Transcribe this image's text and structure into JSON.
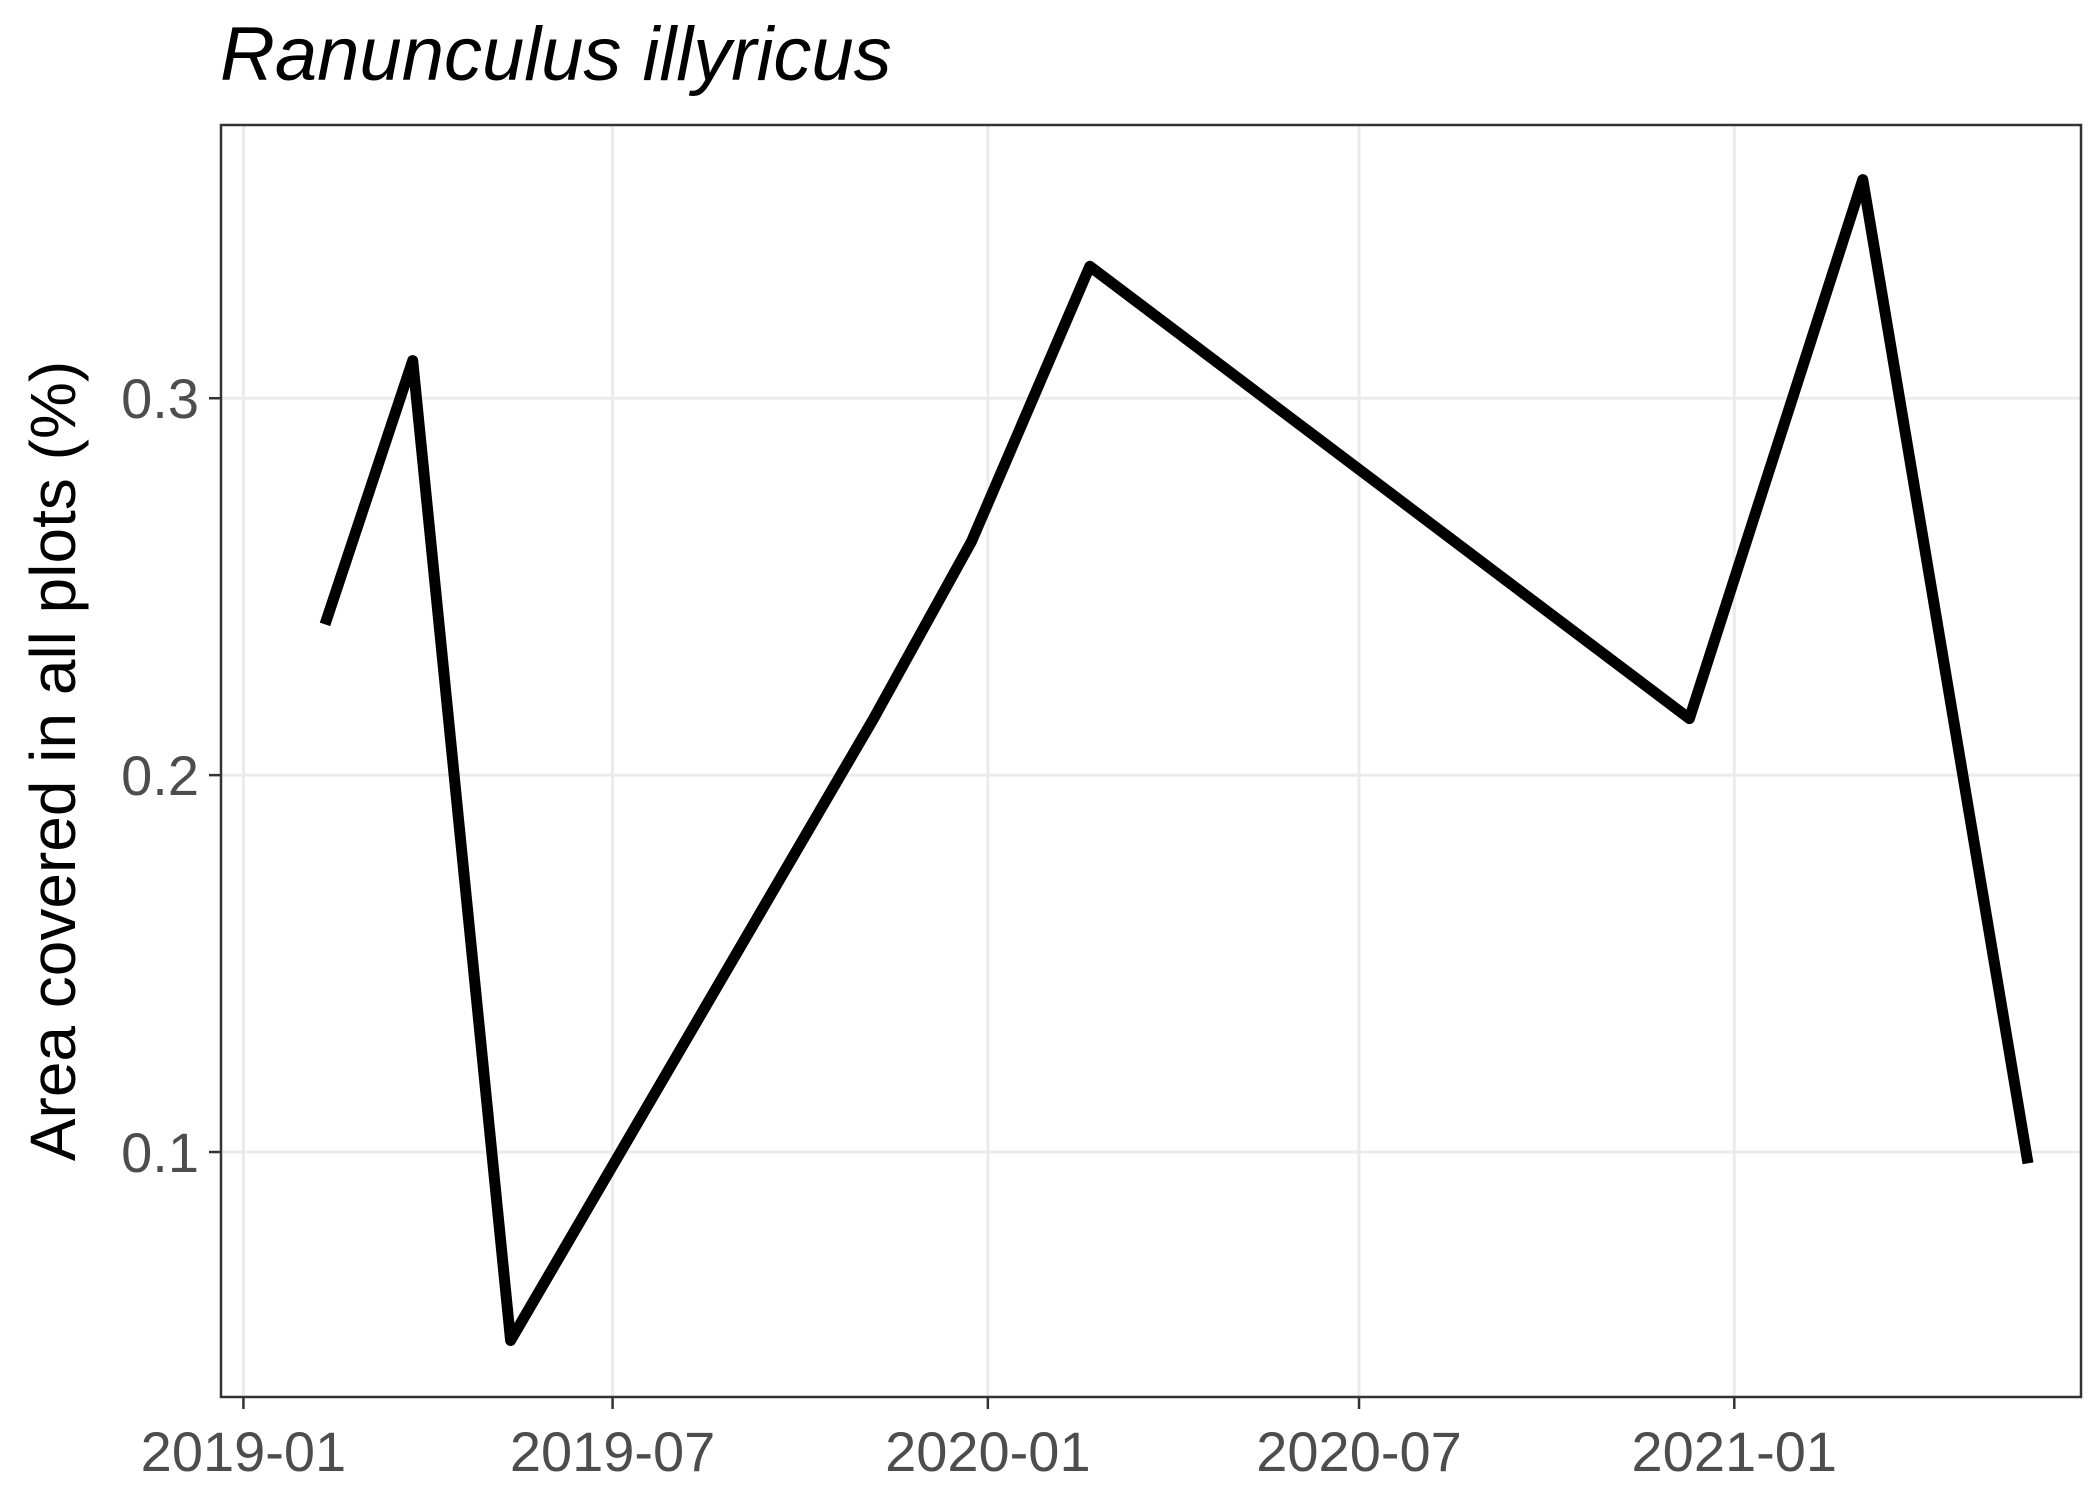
{
  "chart_data": {
    "type": "line",
    "title": "Ranunculus illyricus",
    "xlabel": "",
    "ylabel": "Area covered in all plots (%)",
    "x": [
      "2019-02-10",
      "2019-03-25",
      "2019-05-12",
      "2019-11-06",
      "2019-12-24",
      "2020-02-20",
      "2020-12-10",
      "2021-03-05",
      "2021-05-25"
    ],
    "series": [
      {
        "values": [
          0.24,
          0.31,
          0.05,
          0.215,
          0.262,
          0.335,
          0.215,
          0.358,
          0.097
        ]
      }
    ],
    "xlim": [
      "2018-12-21",
      "2021-06-20"
    ],
    "ylim": [
      0.035,
      0.3725
    ],
    "x_ticks": [
      "2019-01-01",
      "2019-07-01",
      "2020-01-01",
      "2020-07-01",
      "2021-01-01"
    ],
    "x_tick_labels": [
      "2019-01",
      "2019-07",
      "2020-01",
      "2020-07",
      "2021-01"
    ],
    "y_ticks": [
      0.1,
      0.2,
      0.3
    ],
    "y_tick_labels": [
      "0.1",
      "0.2",
      "0.3"
    ],
    "grid": true,
    "line_color": "#000000"
  }
}
